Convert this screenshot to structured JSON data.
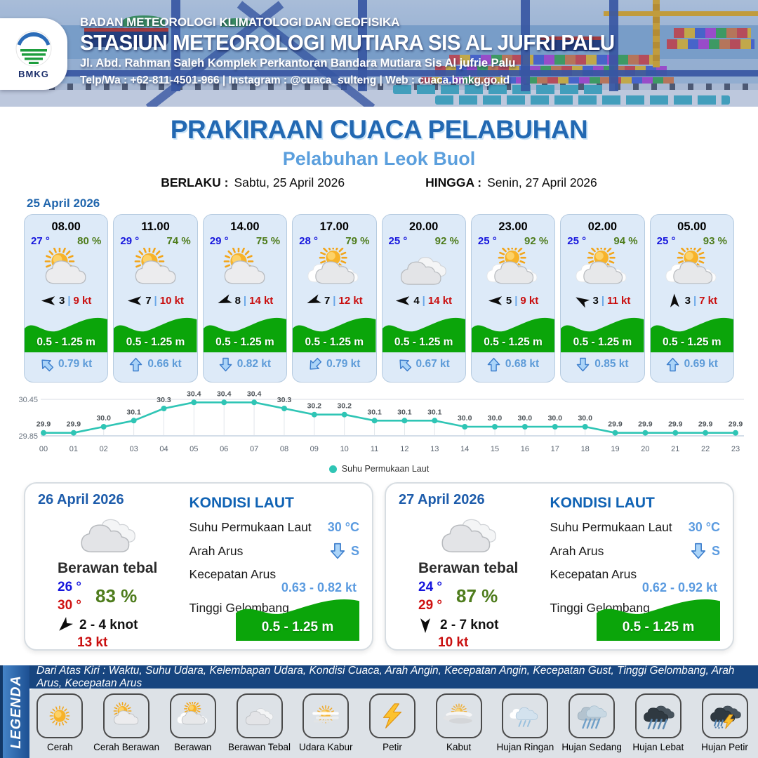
{
  "header": {
    "org": "BADAN METEOROLOGI KLIMATOLOGI DAN GEOFISIKA",
    "station": "STASIUN METEOROLOGI MUTIARA SIS AL JUFRI PALU",
    "address": "Jl. Abd. Rahman Saleh Komplek Perkantoran Bandara Mutiara Sis Al jufrie Palu",
    "contact": "Telp/Wa : +62-811-4501-966  |  Instagram : @cuaca_sulteng  |  Web : cuaca.bmkg.go.id",
    "logo_label": "BMKG"
  },
  "title": "PRAKIRAAN CUACA PELABUHAN",
  "subtitle": "Pelabuhan Leok Buol",
  "validity": {
    "berlaku_label": "BERLAKU :",
    "berlaku_value": "Sabtu, 25 April 2026",
    "hingga_label": "HINGGA :",
    "hingga_value": "Senin, 27 April 2026"
  },
  "forecast_date": "25 April 2026",
  "wind_separator": "|",
  "forecast_cards": [
    {
      "time": "08.00",
      "temp": "27 °",
      "humidity": "80 %",
      "icon": "cerah-berawan",
      "condition": "Cerah Berawan",
      "wind_value": "3",
      "gust": "9 kt",
      "wind_dir_deg": 180,
      "wave": "0.5 - 1.25 m",
      "current_speed": "0.79 kt",
      "current_dir_deg": -45
    },
    {
      "time": "11.00",
      "temp": "29 °",
      "humidity": "74 %",
      "icon": "cerah-berawan",
      "condition": "Cerah Berawan",
      "wind_value": "7",
      "gust": "10 kt",
      "wind_dir_deg": 180,
      "wave": "0.5 - 1.25 m",
      "current_speed": "0.66 kt",
      "current_dir_deg": 0
    },
    {
      "time": "14.00",
      "temp": "29 °",
      "humidity": "75 %",
      "icon": "cerah-berawan",
      "condition": "Cerah Berawan",
      "wind_value": "8",
      "gust": "14 kt",
      "wind_dir_deg": 160,
      "wave": "0.5 - 1.25 m",
      "current_speed": "0.82 kt",
      "current_dir_deg": 180
    },
    {
      "time": "17.00",
      "temp": "28 °",
      "humidity": "79 %",
      "icon": "berawan",
      "condition": "Berawan",
      "wind_value": "7",
      "gust": "12 kt",
      "wind_dir_deg": 160,
      "wave": "0.5 - 1.25 m",
      "current_speed": "0.79 kt",
      "current_dir_deg": -135
    },
    {
      "time": "20.00",
      "temp": "25 °",
      "humidity": "92 %",
      "icon": "berawan-tebal",
      "condition": "Berawan Tebal",
      "wind_value": "4",
      "gust": "14 kt",
      "wind_dir_deg": 180,
      "wave": "0.5 - 1.25 m",
      "current_speed": "0.67 kt",
      "current_dir_deg": -45
    },
    {
      "time": "23.00",
      "temp": "25 °",
      "humidity": "92 %",
      "icon": "berawan",
      "condition": "Berawan",
      "wind_value": "5",
      "gust": "9 kt",
      "wind_dir_deg": 180,
      "wave": "0.5 - 1.25 m",
      "current_speed": "0.68 kt",
      "current_dir_deg": 0
    },
    {
      "time": "02.00",
      "temp": "25 °",
      "humidity": "94 %",
      "icon": "berawan",
      "condition": "Berawan",
      "wind_value": "3",
      "gust": "11 kt",
      "wind_dir_deg": 210,
      "wave": "0.5 - 1.25 m",
      "current_speed": "0.85 kt",
      "current_dir_deg": 180
    },
    {
      "time": "05.00",
      "temp": "25 °",
      "humidity": "93 %",
      "icon": "berawan",
      "condition": "Berawan",
      "wind_value": "3",
      "gust": "7 kt",
      "wind_dir_deg": 268,
      "wave": "0.5 - 1.25 m",
      "current_speed": "0.69 kt",
      "current_dir_deg": 0
    }
  ],
  "chart_data": {
    "type": "line",
    "legend_label": "Suhu Permukaan Laut",
    "x": [
      "00",
      "01",
      "02",
      "03",
      "04",
      "05",
      "06",
      "07",
      "08",
      "09",
      "10",
      "11",
      "12",
      "13",
      "14",
      "15",
      "16",
      "17",
      "18",
      "19",
      "20",
      "21",
      "22",
      "23"
    ],
    "values": [
      29.9,
      29.9,
      30.0,
      30.1,
      30.3,
      30.4,
      30.4,
      30.4,
      30.3,
      30.2,
      30.2,
      30.1,
      30.1,
      30.1,
      30.0,
      30.0,
      30.0,
      30.0,
      30.0,
      29.9,
      29.9,
      29.9,
      29.9,
      29.9
    ],
    "ylim": [
      29.85,
      30.45
    ],
    "yticks": [
      "30.45",
      "29.85"
    ],
    "line_color": "#2fc5b5",
    "grid": true,
    "legend_position": "bottom"
  },
  "daily": [
    {
      "date": "26 April 2026",
      "icon": "berawan-tebal",
      "condition": "Berawan tebal",
      "temp_min": "26 °",
      "temp_max": "30 °",
      "humidity": "83 %",
      "wind_dir_deg": 135,
      "wind_range": "2  - 4 knot",
      "gust": "13 kt",
      "sea": {
        "heading": "KONDISI LAUT",
        "sst_label": "Suhu Permukaan Laut",
        "sst_value": "30 °C",
        "dir_label": "Arah Arus",
        "dir_value": "S",
        "dir_deg": 180,
        "speed_label": "Kecepatan Arus",
        "speed_value": "0.63  - 0.82 kt",
        "wave_label": "Tinggi Gelombang",
        "wave_value": "0.5 - 1.25 m"
      }
    },
    {
      "date": "27 April 2026",
      "icon": "berawan-tebal",
      "condition": "Berawan tebal",
      "temp_min": "24 °",
      "temp_max": "29 °",
      "humidity": "87 %",
      "wind_dir_deg": 90,
      "wind_range": "2  - 7 knot",
      "gust": "10 kt",
      "sea": {
        "heading": "KONDISI LAUT",
        "sst_label": "Suhu Permukaan Laut",
        "sst_value": "30 °C",
        "dir_label": "Arah Arus",
        "dir_value": "S",
        "dir_deg": 180,
        "speed_label": "Kecepatan Arus",
        "speed_value": "0.62  - 0.92 kt",
        "wave_label": "Tinggi Gelombang",
        "wave_value": "0.5 - 1.25 m"
      }
    }
  ],
  "legend": {
    "strip": "LEGENDA",
    "description": "Dari Atas Kiri : Waktu, Suhu Udara, Kelembapan Udara, Kondisi Cuaca, Arah Angin, Kecepatan Angin, Kecepatan Gust, Tinggi Gelombang, Arah Arus, Kecepatan Arus",
    "items": [
      {
        "label": "Cerah",
        "icon": "cerah"
      },
      {
        "label": "Cerah Berawan",
        "icon": "cerah-berawan"
      },
      {
        "label": "Berawan",
        "icon": "berawan"
      },
      {
        "label": "Berawan Tebal",
        "icon": "berawan-tebal"
      },
      {
        "label": "Udara Kabur",
        "icon": "udara-kabur"
      },
      {
        "label": "Petir",
        "icon": "petir"
      },
      {
        "label": "Kabut",
        "icon": "kabut"
      },
      {
        "label": "Hujan Ringan",
        "icon": "hujan-ringan"
      },
      {
        "label": "Hujan Sedang",
        "icon": "hujan-sedang"
      },
      {
        "label": "Hujan Lebat",
        "icon": "hujan-lebat"
      },
      {
        "label": "Hujan Petir",
        "icon": "hujan-petir"
      }
    ]
  },
  "colors": {
    "accent_blue": "#2268b2",
    "light_blue": "#5b9fdd",
    "temp_blue": "#1616dd",
    "humidity_green": "#4e7c1c",
    "gust_red": "#c90f0f",
    "wave_green": "#0ba50a",
    "current_blue": "#5d9bd8",
    "chart_teal": "#2fc5b5",
    "legend_navy": "#17457f"
  }
}
